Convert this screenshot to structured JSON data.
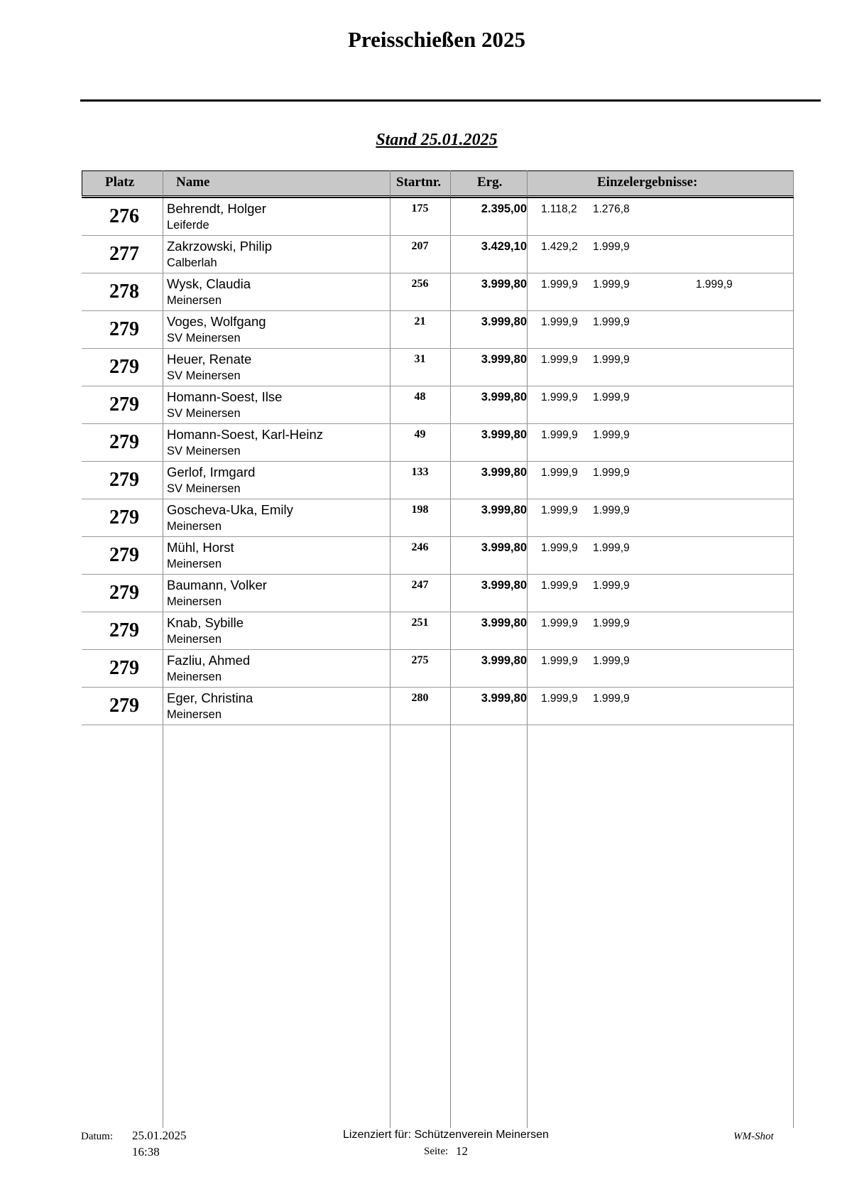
{
  "title": "Preisschießen 2025",
  "stand": "Stand 25.01.2025",
  "headers": {
    "platz": "Platz",
    "name": "Name",
    "startnr": "Startnr.",
    "erg": "Erg.",
    "einzel": "Einzelergebnisse:"
  },
  "rows": [
    {
      "platz": "276",
      "name": "Behrendt, Holger",
      "club": "Leiferde",
      "startnr": "175",
      "erg": "2.395,00",
      "e1": "1.118,2",
      "e2": "1.276,8",
      "e3": ""
    },
    {
      "platz": "277",
      "name": "Zakrzowski, Philip",
      "club": "Calberlah",
      "startnr": "207",
      "erg": "3.429,10",
      "e1": "1.429,2",
      "e2": "1.999,9",
      "e3": ""
    },
    {
      "platz": "278",
      "name": "Wysk, Claudia",
      "club": "Meinersen",
      "startnr": "256",
      "erg": "3.999,80",
      "e1": "1.999,9",
      "e2": "1.999,9",
      "e3": "1.999,9"
    },
    {
      "platz": "279",
      "name": "Voges, Wolfgang",
      "club": "SV Meinersen",
      "startnr": "21",
      "erg": "3.999,80",
      "e1": "1.999,9",
      "e2": "1.999,9",
      "e3": ""
    },
    {
      "platz": "279",
      "name": "Heuer, Renate",
      "club": "SV Meinersen",
      "startnr": "31",
      "erg": "3.999,80",
      "e1": "1.999,9",
      "e2": "1.999,9",
      "e3": ""
    },
    {
      "platz": "279",
      "name": "Homann-Soest,  Ilse",
      "club": "SV Meinersen",
      "startnr": "48",
      "erg": "3.999,80",
      "e1": "1.999,9",
      "e2": "1.999,9",
      "e3": ""
    },
    {
      "platz": "279",
      "name": "Homann-Soest,  Karl-Heinz",
      "club": "SV Meinersen",
      "startnr": "49",
      "erg": "3.999,80",
      "e1": "1.999,9",
      "e2": "1.999,9",
      "e3": ""
    },
    {
      "platz": "279",
      "name": "Gerlof, Irmgard",
      "club": "SV Meinersen",
      "startnr": "133",
      "erg": "3.999,80",
      "e1": "1.999,9",
      "e2": "1.999,9",
      "e3": ""
    },
    {
      "platz": "279",
      "name": "Goscheva-Uka, Emily",
      "club": "Meinersen",
      "startnr": "198",
      "erg": "3.999,80",
      "e1": "1.999,9",
      "e2": "1.999,9",
      "e3": ""
    },
    {
      "platz": "279",
      "name": "Mühl, Horst",
      "club": "Meinersen",
      "startnr": "246",
      "erg": "3.999,80",
      "e1": "1.999,9",
      "e2": "1.999,9",
      "e3": ""
    },
    {
      "platz": "279",
      "name": "Baumann, Volker",
      "club": "Meinersen",
      "startnr": "247",
      "erg": "3.999,80",
      "e1": "1.999,9",
      "e2": "1.999,9",
      "e3": ""
    },
    {
      "platz": "279",
      "name": "Knab,  Sybille",
      "club": "Meinersen",
      "startnr": "251",
      "erg": "3.999,80",
      "e1": "1.999,9",
      "e2": "1.999,9",
      "e3": ""
    },
    {
      "platz": "279",
      "name": "Fazliu, Ahmed",
      "club": "Meinersen",
      "startnr": "275",
      "erg": "3.999,80",
      "e1": "1.999,9",
      "e2": "1.999,9",
      "e3": ""
    },
    {
      "platz": "279",
      "name": "Eger, Christina",
      "club": "Meinersen",
      "startnr": "280",
      "erg": "3.999,80",
      "e1": "1.999,9",
      "e2": "1.999,9",
      "e3": ""
    }
  ],
  "footer": {
    "datum_label": "Datum:",
    "date": "25.01.2025",
    "time": "16:38",
    "license": "Lizenziert für: Schützenverein Meinersen",
    "page_label": "Seite:",
    "page": "12",
    "software": "WM-Shot"
  }
}
